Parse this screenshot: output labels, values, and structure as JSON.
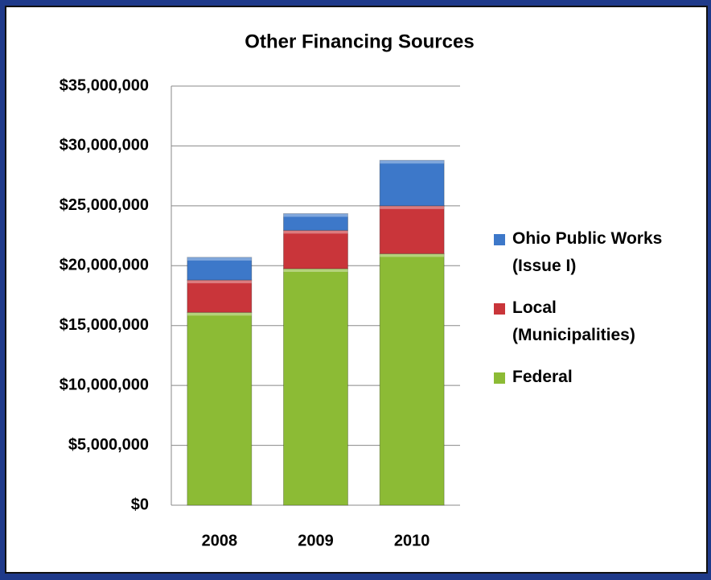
{
  "chart_data": {
    "type": "stacked_bar",
    "title": "Other Financing Sources",
    "categories": [
      "2008",
      "2009",
      "2010"
    ],
    "series": [
      {
        "name": "Federal",
        "color": "#8cbb35",
        "values": [
          16100000,
          19750000,
          21000000
        ]
      },
      {
        "name": "Local (Municipalities)",
        "color": "#c9353a",
        "values": [
          2700000,
          3200000,
          4000000
        ]
      },
      {
        "name": "Ohio Public Works (Issue I)",
        "color": "#3d78c9",
        "values": [
          1900000,
          1400000,
          3800000
        ]
      }
    ],
    "ylim": [
      0,
      35000000
    ],
    "yticks": [
      {
        "value": 0,
        "label": "$0"
      },
      {
        "value": 5000000,
        "label": "$5,000,000"
      },
      {
        "value": 10000000,
        "label": "$10,000,000"
      },
      {
        "value": 15000000,
        "label": "$15,000,000"
      },
      {
        "value": 20000000,
        "label": "$20,000,000"
      },
      {
        "value": 25000000,
        "label": "$25,000,000"
      },
      {
        "value": 30000000,
        "label": "$30,000,000"
      },
      {
        "value": 35000000,
        "label": "$35,000,000"
      }
    ],
    "grid": true,
    "legend": "right"
  }
}
